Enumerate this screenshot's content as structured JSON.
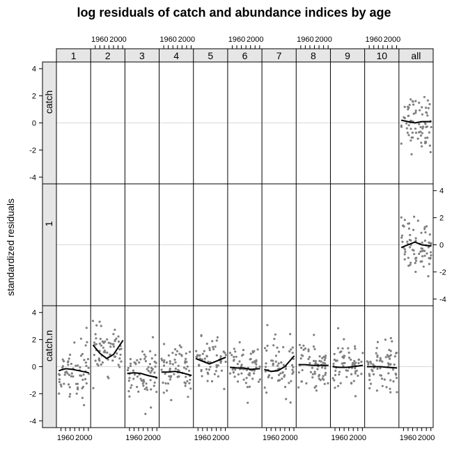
{
  "chart_data": {
    "type": "scatter",
    "title": "log residuals of catch and abundance indices by age",
    "ylabel": "standardized residuals",
    "ages": [
      "1",
      "2",
      "3",
      "4",
      "5",
      "6",
      "7",
      "8",
      "9",
      "10",
      "all"
    ],
    "rows": [
      "catch",
      "1",
      "catch.n"
    ],
    "xlim": [
      1940,
      2015
    ],
    "ylim": [
      -4.5,
      4.5
    ],
    "xticks": [
      1960,
      2000
    ],
    "xtick_minor_step": 10,
    "yticks": [
      -4,
      -2,
      0,
      2,
      4
    ],
    "x_start": 1945,
    "x_end": 2011,
    "point_color": "#808080",
    "smooth_color": "#000000",
    "reference_line_color": "#d9d9d9",
    "strip_color": "#e6e6e6",
    "panels": [
      {
        "row": "catch",
        "age": "all",
        "spread": 1.0,
        "mean": 0.1,
        "smooth": [
          [
            1945,
            0.2
          ],
          [
            1960,
            0.1
          ],
          [
            1975,
            0.0
          ],
          [
            1990,
            0.1
          ],
          [
            2011,
            0.1
          ]
        ]
      },
      {
        "row": "1",
        "age": "all",
        "spread": 1.0,
        "mean": -0.1,
        "smooth": [
          [
            1945,
            -0.2
          ],
          [
            1960,
            0.0
          ],
          [
            1975,
            0.2
          ],
          [
            1990,
            0.0
          ],
          [
            2011,
            -0.1
          ]
        ]
      },
      {
        "row": "catch.n",
        "age": "1",
        "spread": 1.1,
        "mean": -0.3,
        "smooth": [
          [
            1945,
            -0.3
          ],
          [
            1960,
            -0.15
          ],
          [
            1975,
            -0.2
          ],
          [
            1990,
            -0.3
          ],
          [
            2011,
            -0.45
          ]
        ]
      },
      {
        "row": "catch.n",
        "age": "2",
        "spread": 0.8,
        "mean": 1.2,
        "smooth": [
          [
            1945,
            1.6
          ],
          [
            1960,
            1.0
          ],
          [
            1975,
            0.6
          ],
          [
            1990,
            0.9
          ],
          [
            2011,
            1.95
          ]
        ]
      },
      {
        "row": "catch.n",
        "age": "3",
        "spread": 1.0,
        "mean": -0.6,
        "smooth": [
          [
            1945,
            -0.5
          ],
          [
            1960,
            -0.45
          ],
          [
            1975,
            -0.5
          ],
          [
            1990,
            -0.65
          ],
          [
            2011,
            -0.8
          ]
        ]
      },
      {
        "row": "catch.n",
        "age": "4",
        "spread": 0.9,
        "mean": -0.3,
        "smooth": [
          [
            1945,
            -0.4
          ],
          [
            1960,
            -0.4
          ],
          [
            1975,
            -0.35
          ],
          [
            1990,
            -0.45
          ],
          [
            2011,
            -0.65
          ]
        ]
      },
      {
        "row": "catch.n",
        "age": "5",
        "spread": 0.8,
        "mean": 0.4,
        "smooth": [
          [
            1945,
            0.6
          ],
          [
            1960,
            0.4
          ],
          [
            1975,
            0.2
          ],
          [
            1990,
            0.4
          ],
          [
            2011,
            0.7
          ]
        ]
      },
      {
        "row": "catch.n",
        "age": "6",
        "spread": 0.9,
        "mean": -0.1,
        "smooth": [
          [
            1945,
            -0.05
          ],
          [
            1960,
            -0.1
          ],
          [
            1975,
            -0.1
          ],
          [
            1990,
            -0.2
          ],
          [
            2011,
            -0.15
          ]
        ]
      },
      {
        "row": "catch.n",
        "age": "7",
        "spread": 1.0,
        "mean": 0.0,
        "smooth": [
          [
            1945,
            -0.2
          ],
          [
            1960,
            -0.35
          ],
          [
            1975,
            -0.3
          ],
          [
            1990,
            0.0
          ],
          [
            2011,
            0.8
          ]
        ]
      },
      {
        "row": "catch.n",
        "age": "8",
        "spread": 0.9,
        "mean": 0.1,
        "smooth": [
          [
            1945,
            0.15
          ],
          [
            1960,
            0.15
          ],
          [
            1975,
            0.1
          ],
          [
            1990,
            0.1
          ],
          [
            2011,
            0.1
          ]
        ]
      },
      {
        "row": "catch.n",
        "age": "9",
        "spread": 0.9,
        "mean": 0.0,
        "smooth": [
          [
            1945,
            0.0
          ],
          [
            1960,
            -0.05
          ],
          [
            1975,
            -0.05
          ],
          [
            1990,
            0.0
          ],
          [
            2011,
            0.1
          ]
        ]
      },
      {
        "row": "catch.n",
        "age": "10",
        "spread": 0.9,
        "mean": 0.0,
        "smooth": [
          [
            1945,
            0.0
          ],
          [
            1960,
            0.0
          ],
          [
            1975,
            0.0
          ],
          [
            1990,
            -0.05
          ],
          [
            2011,
            -0.1
          ]
        ]
      }
    ]
  }
}
